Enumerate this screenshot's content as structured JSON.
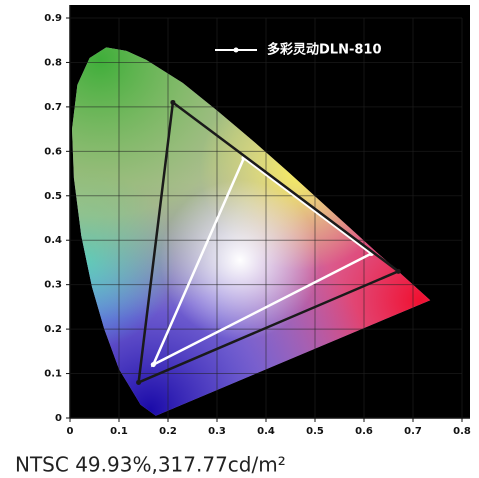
{
  "chart_data": {
    "type": "line",
    "caption": "NTSC 49.93%,317.77cd/m²",
    "series": [
      {
        "name": "多彩灵动DLN-810",
        "color": "#ffffff",
        "x": [
          0.17,
          0.355,
          0.615
        ],
        "values": [
          0.12,
          0.585,
          0.37
        ]
      },
      {
        "color": "#1a1a1a",
        "x": [
          0.21,
          0.67,
          0.14
        ],
        "values": [
          0.71,
          0.33,
          0.08
        ]
      }
    ],
    "xlim": [
      0,
      0.8
    ],
    "xticks": [
      0,
      0.1,
      0.2,
      0.3,
      0.4,
      0.5,
      0.6,
      0.7,
      0.8
    ],
    "ylim": [
      0,
      0.9
    ],
    "yticks": [
      0,
      0.1,
      0.2,
      0.3,
      0.4,
      0.5,
      0.6,
      0.7,
      0.8,
      0.9
    ],
    "grid": true,
    "legend": "top-right"
  }
}
